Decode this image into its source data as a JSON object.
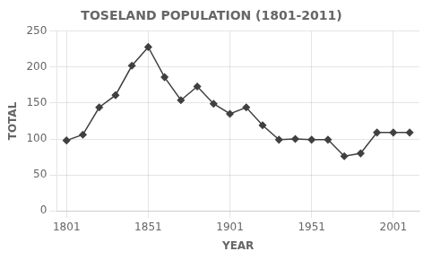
{
  "chart_data": {
    "type": "line",
    "title": "TOSELAND POPULATION (1801-2011)",
    "xlabel": "YEAR",
    "ylabel": "TOTAL",
    "x": [
      1801,
      1811,
      1821,
      1831,
      1841,
      1851,
      1861,
      1871,
      1881,
      1891,
      1901,
      1911,
      1921,
      1931,
      1941,
      1951,
      1961,
      1971,
      1981,
      1991,
      2001,
      2011
    ],
    "values": [
      98,
      106,
      144,
      161,
      202,
      228,
      186,
      154,
      173,
      149,
      135,
      144,
      119,
      99,
      100,
      99,
      99,
      76,
      80,
      109,
      109,
      109
    ],
    "color": "#404040",
    "marker": "diamond",
    "xlim": [
      1795,
      2017
    ],
    "xticks": [
      1801,
      1851,
      1901,
      1951,
      2001
    ],
    "ylim": [
      0,
      250
    ],
    "yticks": [
      0,
      50,
      100,
      150,
      200,
      250
    ],
    "grid": true
  }
}
